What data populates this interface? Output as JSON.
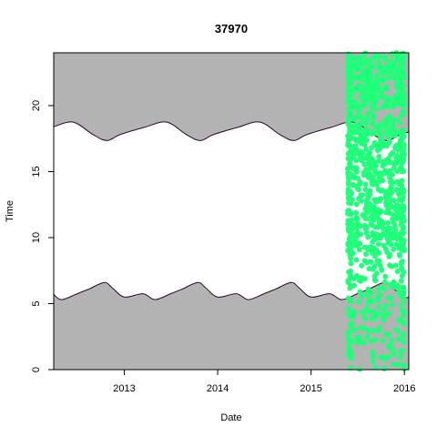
{
  "chart_data": {
    "type": "scatter",
    "title": "37970",
    "xlabel": "Date",
    "ylabel": "Time",
    "xlim": [
      "2012-03-31",
      "2016-01-18"
    ],
    "ylim": [
      0,
      24
    ],
    "x_ticks": [
      {
        "value": "2013-01-01",
        "label": "2013"
      },
      {
        "value": "2014-01-01",
        "label": "2014"
      },
      {
        "value": "2015-01-01",
        "label": "2015"
      },
      {
        "value": "2016-01-01",
        "label": "2016"
      }
    ],
    "y_ticks": [
      {
        "value": 0,
        "label": "0"
      },
      {
        "value": 5,
        "label": "5"
      },
      {
        "value": 10,
        "label": "10"
      },
      {
        "value": 15,
        "label": "15"
      },
      {
        "value": 20,
        "label": "20"
      }
    ],
    "colors": {
      "night_fill": "#b3b3b3",
      "day_fill": "#ffffff",
      "curve": "#2a0a2a",
      "points": "#1fff7a",
      "axis": "#000000"
    },
    "sunrise_curve": {
      "name": "sunrise",
      "points": [
        [
          "2012-03-31",
          5.7
        ],
        [
          "2012-05-01",
          5.3
        ],
        [
          "2012-07-01",
          5.75
        ],
        [
          "2012-08-15",
          6.1
        ],
        [
          "2012-10-15",
          6.6
        ],
        [
          "2012-11-15",
          6.2
        ],
        [
          "2013-01-01",
          5.5
        ],
        [
          "2013-03-15",
          5.75
        ],
        [
          "2013-05-01",
          5.3
        ],
        [
          "2013-07-01",
          5.75
        ],
        [
          "2013-08-15",
          6.1
        ],
        [
          "2013-10-15",
          6.6
        ],
        [
          "2013-11-15",
          6.2
        ],
        [
          "2014-01-01",
          5.5
        ],
        [
          "2014-03-15",
          5.75
        ],
        [
          "2014-05-01",
          5.3
        ],
        [
          "2014-07-01",
          5.75
        ],
        [
          "2014-08-15",
          6.1
        ],
        [
          "2014-10-15",
          6.6
        ],
        [
          "2014-11-15",
          6.2
        ],
        [
          "2015-01-01",
          5.5
        ],
        [
          "2015-03-15",
          5.75
        ],
        [
          "2015-05-01",
          5.3
        ],
        [
          "2015-07-01",
          5.75
        ],
        [
          "2015-08-15",
          6.1
        ],
        [
          "2015-10-15",
          6.6
        ],
        [
          "2015-11-15",
          6.2
        ],
        [
          "2016-01-01",
          5.5
        ],
        [
          "2016-01-18",
          5.5
        ]
      ]
    },
    "sunset_curve": {
      "name": "sunset",
      "points": [
        [
          "2012-03-31",
          18.4
        ],
        [
          "2012-06-15",
          18.75
        ],
        [
          "2012-09-01",
          17.8
        ],
        [
          "2012-10-25",
          17.35
        ],
        [
          "2012-12-15",
          17.8
        ],
        [
          "2013-03-20",
          18.35
        ],
        [
          "2013-06-15",
          18.75
        ],
        [
          "2013-09-01",
          17.8
        ],
        [
          "2013-10-25",
          17.35
        ],
        [
          "2013-12-15",
          17.8
        ],
        [
          "2014-03-20",
          18.35
        ],
        [
          "2014-06-15",
          18.75
        ],
        [
          "2014-09-01",
          17.8
        ],
        [
          "2014-10-25",
          17.35
        ],
        [
          "2014-12-15",
          17.8
        ],
        [
          "2015-03-20",
          18.35
        ],
        [
          "2015-06-15",
          18.75
        ],
        [
          "2015-09-01",
          17.8
        ],
        [
          "2015-10-25",
          17.35
        ],
        [
          "2015-12-15",
          17.8
        ],
        [
          "2016-01-18",
          18.0
        ]
      ]
    },
    "observations": {
      "date_range": [
        "2015-05-25",
        "2016-01-01"
      ],
      "time_range": [
        0,
        24
      ],
      "approx_count": 1100
    }
  }
}
